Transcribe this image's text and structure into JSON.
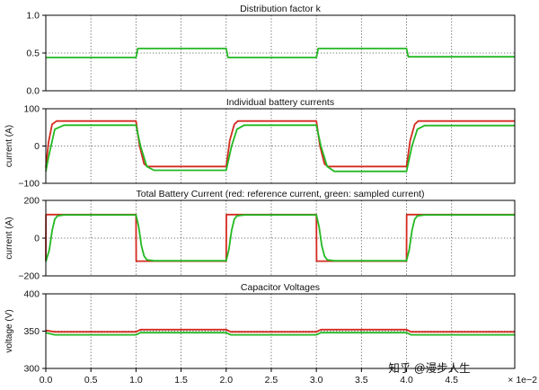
{
  "colors": {
    "reference": "#d42a20",
    "sampled": "#22b822",
    "grid": "#444444",
    "frame": "#000000",
    "watermark": "#c9c9c9"
  },
  "watermark": "知乎 @漫步人生",
  "chart_data": [
    {
      "type": "line",
      "title": "Distribution factor k",
      "xlabel": "",
      "ylabel": "",
      "xlim": [
        0.0,
        5.2
      ],
      "ylim": [
        0.0,
        1.0
      ],
      "yticks": [
        0.0,
        0.5,
        1.0
      ],
      "ytick_labels": [
        "0.0",
        "0.5",
        "1.0"
      ],
      "grid": true,
      "series": [
        {
          "name": "sampled",
          "color_key": "sampled",
          "x": [
            0.0,
            1.0,
            1.02,
            2.0,
            2.02,
            3.0,
            3.02,
            4.0,
            4.02,
            5.2
          ],
          "y": [
            0.44,
            0.44,
            0.56,
            0.56,
            0.44,
            0.44,
            0.56,
            0.56,
            0.45,
            0.45
          ]
        }
      ]
    },
    {
      "type": "line",
      "title": "Individual battery currents",
      "xlabel": "",
      "ylabel": "current (A)",
      "xlim": [
        0.0,
        5.2
      ],
      "ylim": [
        -100,
        100
      ],
      "yticks": [
        -100,
        0,
        100
      ],
      "ytick_labels": [
        "−100",
        "0",
        "100"
      ],
      "grid": true,
      "series": [
        {
          "name": "reference",
          "color_key": "reference",
          "x": [
            0.0,
            0.03,
            0.07,
            0.12,
            1.0,
            1.04,
            1.09,
            1.13,
            2.0,
            2.04,
            2.09,
            2.13,
            3.0,
            3.04,
            3.09,
            3.13,
            4.0,
            4.04,
            4.09,
            4.13,
            5.2
          ],
          "y": [
            -58,
            10,
            58,
            67,
            67,
            0,
            -48,
            -55,
            -55,
            15,
            58,
            67,
            67,
            0,
            -48,
            -55,
            -55,
            15,
            58,
            67,
            67
          ]
        },
        {
          "name": "sampled",
          "color_key": "sampled",
          "x": [
            0.0,
            0.03,
            0.1,
            0.2,
            1.0,
            1.05,
            1.12,
            1.2,
            2.0,
            2.06,
            2.12,
            2.2,
            3.0,
            3.05,
            3.12,
            3.2,
            4.0,
            4.06,
            4.12,
            4.2,
            5.2
          ],
          "y": [
            -68,
            -30,
            45,
            56,
            56,
            0,
            -55,
            -65,
            -65,
            0,
            45,
            56,
            56,
            0,
            -55,
            -68,
            -68,
            0,
            45,
            55,
            55
          ]
        }
      ]
    },
    {
      "type": "line",
      "title": "Total Battery Current (red: reference current, green: sampled current)",
      "xlabel": "",
      "ylabel": "current (A)",
      "xlim": [
        0.0,
        5.2
      ],
      "ylim": [
        -200,
        200
      ],
      "yticks": [
        -200,
        0,
        200
      ],
      "ytick_labels": [
        "−200",
        "0",
        "200"
      ],
      "grid": true,
      "series": [
        {
          "name": "reference current",
          "color_key": "reference",
          "x": [
            0.0,
            0.002,
            1.0,
            1.002,
            2.0,
            2.002,
            3.0,
            3.002,
            4.0,
            4.002,
            5.2
          ],
          "y": [
            -120,
            125,
            125,
            -122,
            -122,
            125,
            125,
            -122,
            -122,
            125,
            125
          ]
        },
        {
          "name": "sampled current",
          "color_key": "sampled",
          "x": [
            0.0,
            0.04,
            0.07,
            0.1,
            0.13,
            0.2,
            1.0,
            1.03,
            1.06,
            1.09,
            1.12,
            1.2,
            2.0,
            2.03,
            2.06,
            2.09,
            2.12,
            2.2,
            3.0,
            3.03,
            3.06,
            3.09,
            3.12,
            3.2,
            4.0,
            4.03,
            4.06,
            4.09,
            4.12,
            4.2,
            5.2
          ],
          "y": [
            -125,
            -60,
            40,
            100,
            118,
            123,
            123,
            60,
            -40,
            -95,
            -115,
            -120,
            -120,
            -60,
            40,
            100,
            118,
            123,
            123,
            60,
            -40,
            -95,
            -115,
            -120,
            -120,
            -60,
            40,
            100,
            118,
            123,
            123
          ]
        }
      ]
    },
    {
      "type": "line",
      "title": "Capacitor Voltages",
      "xlabel": "",
      "ylabel": "voltage (V)",
      "xlim": [
        0.0,
        5.2
      ],
      "ylim": [
        300,
        400
      ],
      "yticks": [
        300,
        350,
        400
      ],
      "ytick_labels": [
        "300",
        "350",
        "400"
      ],
      "xticks": [
        0.0,
        0.5,
        1.0,
        1.5,
        2.0,
        2.5,
        3.0,
        3.5,
        4.0,
        4.5
      ],
      "xtick_labels": [
        "0.0",
        "0.5",
        "1.0",
        "1.5",
        "2.0",
        "2.5",
        "3.0",
        "3.5",
        "4.0",
        "4.5"
      ],
      "x_scale_label": "× 1e−2",
      "grid": true,
      "series": [
        {
          "name": "reference",
          "color_key": "reference",
          "x": [
            0.0,
            0.1,
            1.0,
            1.05,
            2.0,
            2.05,
            3.0,
            3.05,
            4.0,
            4.05,
            5.2
          ],
          "y": [
            351,
            349,
            349,
            352,
            352,
            349,
            349,
            352,
            352,
            349,
            349
          ]
        },
        {
          "name": "sampled",
          "color_key": "sampled",
          "x": [
            0.0,
            0.1,
            1.0,
            1.05,
            2.0,
            2.05,
            3.0,
            3.05,
            4.0,
            4.05,
            5.2
          ],
          "y": [
            348,
            345,
            345,
            348,
            348,
            345,
            345,
            348,
            348,
            345,
            345
          ]
        }
      ]
    }
  ]
}
